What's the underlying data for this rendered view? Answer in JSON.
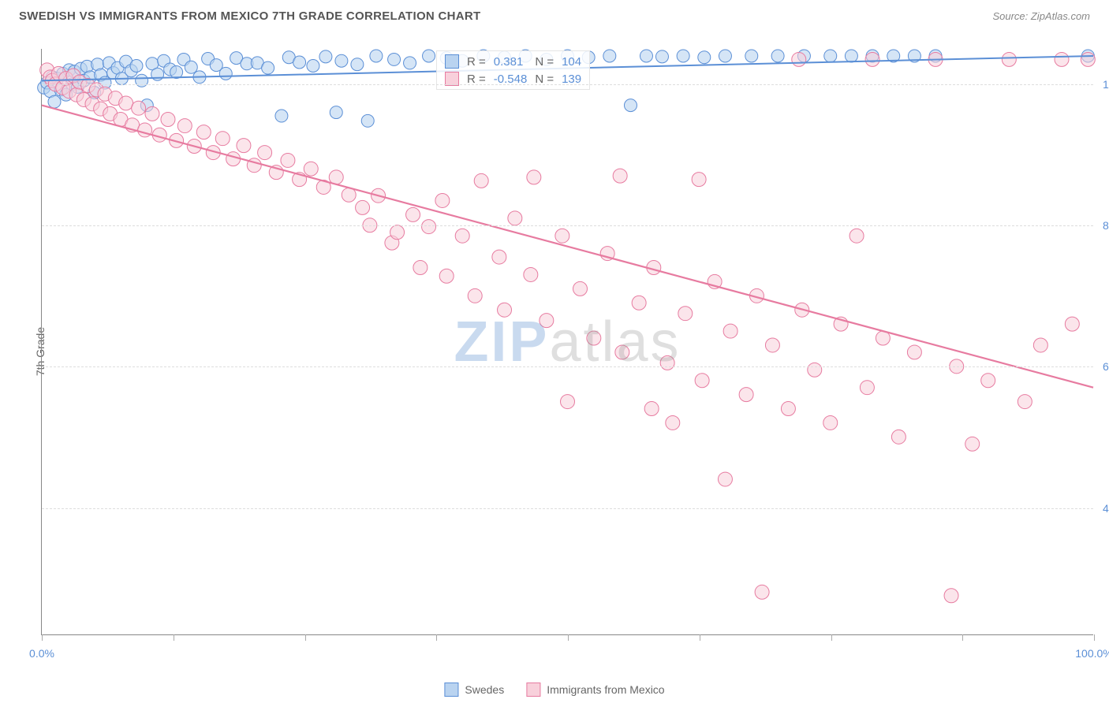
{
  "title": "SWEDISH VS IMMIGRANTS FROM MEXICO 7TH GRADE CORRELATION CHART",
  "source": "Source: ZipAtlas.com",
  "y_axis_label": "7th Grade",
  "watermark_z": "ZIP",
  "watermark_rest": "atlas",
  "chart": {
    "type": "scatter",
    "xlim": [
      0,
      100
    ],
    "ylim": [
      22,
      105
    ],
    "x_ticks": [
      0,
      12.5,
      25,
      37.5,
      50,
      62.5,
      75,
      87.5,
      100
    ],
    "x_tick_labels": {
      "0": "0.0%",
      "100": "100.0%"
    },
    "y_ticks": [
      40,
      60,
      80,
      100
    ],
    "y_tick_labels": {
      "40": "40.0%",
      "60": "60.0%",
      "80": "80.0%",
      "100": "100.0%"
    },
    "grid_color": "#dddddd",
    "background_color": "#ffffff",
    "series": [
      {
        "key": "swedes",
        "label": "Swedes",
        "color_fill": "#b9d3f0",
        "color_stroke": "#5b8fd6",
        "marker_r": 8,
        "marker_opacity": 0.6,
        "trend": {
          "x1": 0,
          "y1": 100.5,
          "x2": 100,
          "y2": 104,
          "width": 2
        },
        "stats": {
          "R": "0.381",
          "N": "104"
        },
        "points": [
          [
            0.2,
            99.5
          ],
          [
            0.5,
            100.2
          ],
          [
            0.8,
            99.0
          ],
          [
            1.0,
            101.0
          ],
          [
            1.2,
            97.5
          ],
          [
            1.5,
            100.8
          ],
          [
            1.8,
            99.2
          ],
          [
            2.0,
            101.5
          ],
          [
            2.3,
            98.5
          ],
          [
            2.6,
            102.0
          ],
          [
            2.9,
            100.0
          ],
          [
            3.1,
            101.8
          ],
          [
            3.4,
            99.6
          ],
          [
            3.7,
            102.2
          ],
          [
            4.0,
            100.5
          ],
          [
            4.3,
            102.5
          ],
          [
            4.6,
            101.0
          ],
          [
            5.0,
            98.8
          ],
          [
            5.3,
            102.8
          ],
          [
            5.6,
            101.3
          ],
          [
            6.0,
            100.2
          ],
          [
            6.4,
            103.0
          ],
          [
            6.8,
            101.6
          ],
          [
            7.2,
            102.3
          ],
          [
            7.6,
            100.8
          ],
          [
            8.0,
            103.2
          ],
          [
            8.5,
            101.9
          ],
          [
            9.0,
            102.6
          ],
          [
            9.5,
            100.5
          ],
          [
            10.0,
            97.0
          ],
          [
            10.5,
            102.9
          ],
          [
            11.0,
            101.4
          ],
          [
            11.6,
            103.3
          ],
          [
            12.2,
            102.1
          ],
          [
            12.8,
            101.7
          ],
          [
            13.5,
            103.5
          ],
          [
            14.2,
            102.4
          ],
          [
            15.0,
            101.0
          ],
          [
            15.8,
            103.6
          ],
          [
            16.6,
            102.7
          ],
          [
            17.5,
            101.5
          ],
          [
            18.5,
            103.7
          ],
          [
            19.5,
            102.9
          ],
          [
            20.5,
            103.0
          ],
          [
            21.5,
            102.3
          ],
          [
            22.8,
            95.5
          ],
          [
            23.5,
            103.8
          ],
          [
            24.5,
            103.1
          ],
          [
            25.8,
            102.6
          ],
          [
            27.0,
            103.9
          ],
          [
            28.0,
            96.0
          ],
          [
            28.5,
            103.3
          ],
          [
            30.0,
            102.8
          ],
          [
            31.0,
            94.8
          ],
          [
            31.8,
            104.0
          ],
          [
            33.5,
            103.5
          ],
          [
            35.0,
            103.0
          ],
          [
            36.8,
            104.0
          ],
          [
            38.5,
            103.7
          ],
          [
            40.0,
            103.3
          ],
          [
            42.0,
            104.0
          ],
          [
            44.0,
            103.8
          ],
          [
            46.0,
            104.0
          ],
          [
            48.0,
            103.5
          ],
          [
            50.0,
            104.0
          ],
          [
            52.0,
            103.8
          ],
          [
            54.0,
            104.0
          ],
          [
            56.0,
            97.0
          ],
          [
            57.5,
            104.0
          ],
          [
            59.0,
            103.9
          ],
          [
            61.0,
            104.0
          ],
          [
            63.0,
            103.8
          ],
          [
            65.0,
            104.0
          ],
          [
            67.5,
            104.0
          ],
          [
            70.0,
            104.0
          ],
          [
            72.5,
            104.0
          ],
          [
            75.0,
            104.0
          ],
          [
            77.0,
            104.0
          ],
          [
            79.0,
            104.0
          ],
          [
            81.0,
            104.0
          ],
          [
            83.0,
            104.0
          ],
          [
            85.0,
            104.0
          ],
          [
            99.5,
            104.0
          ]
        ]
      },
      {
        "key": "mexico",
        "label": "Immigrants from Mexico",
        "color_fill": "#f8d0db",
        "color_stroke": "#e77ba0",
        "marker_r": 9,
        "marker_opacity": 0.55,
        "trend": {
          "x1": 0,
          "y1": 97,
          "x2": 100,
          "y2": 57,
          "width": 2.2
        },
        "stats": {
          "R": "-0.548",
          "N": "139"
        },
        "points": [
          [
            0.5,
            102.0
          ],
          [
            0.8,
            101.0
          ],
          [
            1.0,
            100.5
          ],
          [
            1.3,
            100.0
          ],
          [
            1.6,
            101.5
          ],
          [
            2.0,
            99.5
          ],
          [
            2.3,
            100.8
          ],
          [
            2.6,
            99.0
          ],
          [
            3.0,
            101.2
          ],
          [
            3.3,
            98.5
          ],
          [
            3.6,
            100.3
          ],
          [
            4.0,
            97.8
          ],
          [
            4.4,
            99.8
          ],
          [
            4.8,
            97.2
          ],
          [
            5.2,
            99.2
          ],
          [
            5.6,
            96.5
          ],
          [
            6.0,
            98.6
          ],
          [
            6.5,
            95.8
          ],
          [
            7.0,
            98.0
          ],
          [
            7.5,
            95.0
          ],
          [
            8.0,
            97.3
          ],
          [
            8.6,
            94.2
          ],
          [
            9.2,
            96.6
          ],
          [
            9.8,
            93.5
          ],
          [
            10.5,
            95.8
          ],
          [
            11.2,
            92.8
          ],
          [
            12.0,
            95.0
          ],
          [
            12.8,
            92.0
          ],
          [
            13.6,
            94.1
          ],
          [
            14.5,
            91.2
          ],
          [
            15.4,
            93.2
          ],
          [
            16.3,
            90.3
          ],
          [
            17.2,
            92.3
          ],
          [
            18.2,
            89.4
          ],
          [
            19.2,
            91.3
          ],
          [
            20.2,
            88.5
          ],
          [
            21.2,
            90.3
          ],
          [
            22.3,
            87.5
          ],
          [
            23.4,
            89.2
          ],
          [
            24.5,
            86.5
          ],
          [
            25.6,
            88.0
          ],
          [
            26.8,
            85.4
          ],
          [
            28.0,
            86.8
          ],
          [
            29.2,
            84.3
          ],
          [
            30.5,
            82.5
          ],
          [
            31.2,
            80.0
          ],
          [
            32.0,
            84.2
          ],
          [
            33.3,
            77.5
          ],
          [
            33.8,
            79.0
          ],
          [
            35.3,
            81.5
          ],
          [
            36.0,
            74.0
          ],
          [
            36.8,
            79.8
          ],
          [
            38.1,
            83.5
          ],
          [
            38.5,
            72.8
          ],
          [
            40.0,
            78.5
          ],
          [
            41.2,
            70.0
          ],
          [
            41.8,
            86.3
          ],
          [
            43.5,
            75.5
          ],
          [
            44.0,
            68.0
          ],
          [
            45.0,
            81.0
          ],
          [
            46.5,
            73.0
          ],
          [
            46.8,
            86.8
          ],
          [
            48.0,
            66.5
          ],
          [
            49.5,
            78.5
          ],
          [
            50.0,
            55.0
          ],
          [
            51.2,
            71.0
          ],
          [
            52.5,
            64.0
          ],
          [
            53.8,
            76.0
          ],
          [
            55.0,
            87.0
          ],
          [
            55.2,
            62.0
          ],
          [
            56.8,
            69.0
          ],
          [
            58.0,
            54.0
          ],
          [
            58.2,
            74.0
          ],
          [
            59.5,
            60.5
          ],
          [
            60.0,
            52.0
          ],
          [
            61.2,
            67.5
          ],
          [
            62.5,
            86.5
          ],
          [
            62.8,
            58.0
          ],
          [
            64.0,
            72.0
          ],
          [
            65.0,
            44.0
          ],
          [
            65.5,
            65.0
          ],
          [
            67.0,
            56.0
          ],
          [
            68.0,
            70.0
          ],
          [
            68.5,
            28.0
          ],
          [
            69.5,
            63.0
          ],
          [
            71.0,
            54.0
          ],
          [
            72.0,
            103.5
          ],
          [
            72.3,
            68.0
          ],
          [
            73.5,
            59.5
          ],
          [
            75.0,
            52.0
          ],
          [
            76.0,
            66.0
          ],
          [
            77.5,
            78.5
          ],
          [
            78.5,
            57.0
          ],
          [
            79.0,
            103.5
          ],
          [
            80.0,
            64.0
          ],
          [
            81.5,
            50.0
          ],
          [
            83.0,
            62.0
          ],
          [
            85.0,
            103.5
          ],
          [
            86.5,
            27.5
          ],
          [
            87.0,
            60.0
          ],
          [
            88.5,
            49.0
          ],
          [
            90.0,
            58.0
          ],
          [
            92.0,
            103.5
          ],
          [
            93.5,
            55.0
          ],
          [
            95.0,
            63.0
          ],
          [
            97.0,
            103.5
          ],
          [
            98.0,
            66.0
          ],
          [
            99.5,
            103.5
          ]
        ]
      }
    ]
  },
  "legend": {
    "swedes": "Swedes",
    "mexico": "Immigrants from Mexico"
  },
  "stat_labels": {
    "R": "R =",
    "N": "N ="
  }
}
